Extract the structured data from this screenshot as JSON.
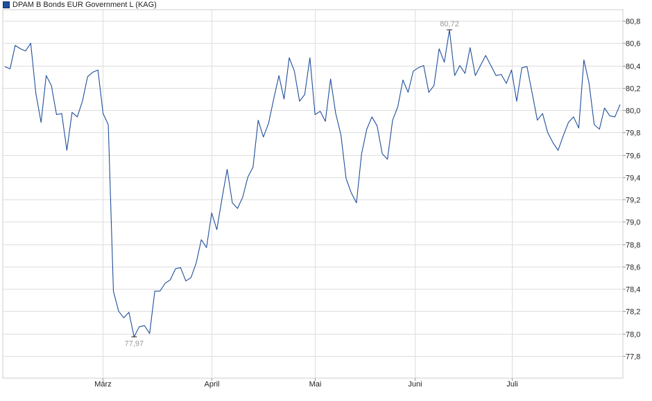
{
  "chart_data": {
    "type": "line",
    "title": "DPAM B Bonds EUR Government L (KAG)",
    "x_labels": [
      "März",
      "April",
      "Mai",
      "Juni",
      "Juli"
    ],
    "y_ticks": [
      "80,8",
      "80,6",
      "80,4",
      "80,2",
      "80,0",
      "79,8",
      "79,6",
      "79,4",
      "79,2",
      "79,0",
      "78,8",
      "78,6",
      "78,4",
      "78,2",
      "78,0",
      "77,8"
    ],
    "ylim": [
      77.6,
      80.9
    ],
    "grid": true,
    "series": [
      {
        "color": "#1f4e9b",
        "values": [
          80.39,
          80.37,
          80.58,
          80.55,
          80.53,
          80.6,
          80.15,
          79.89,
          80.31,
          80.22,
          79.96,
          79.97,
          79.64,
          79.98,
          79.94,
          80.08,
          80.3,
          80.34,
          80.36,
          79.97,
          79.87,
          78.38,
          78.2,
          78.14,
          78.19,
          77.97,
          78.06,
          78.07,
          78.0,
          78.38,
          78.38,
          78.45,
          78.48,
          78.58,
          78.59,
          78.47,
          78.5,
          78.63,
          78.84,
          78.77,
          79.08,
          78.93,
          79.21,
          79.47,
          79.17,
          79.12,
          79.22,
          79.4,
          79.49,
          79.91,
          79.76,
          79.88,
          80.1,
          80.31,
          80.1,
          80.47,
          80.35,
          80.08,
          80.14,
          80.47,
          79.96,
          79.99,
          79.9,
          80.28,
          79.97,
          79.78,
          79.39,
          79.26,
          79.17,
          79.61,
          79.83,
          79.94,
          79.86,
          79.61,
          79.56,
          79.91,
          80.03,
          80.27,
          80.16,
          80.35,
          80.38,
          80.4,
          80.16,
          80.22,
          80.55,
          80.43,
          80.72,
          80.31,
          80.4,
          80.33,
          80.56,
          80.31,
          80.4,
          80.49,
          80.4,
          80.31,
          80.32,
          80.24,
          80.36,
          80.08,
          80.38,
          80.39,
          80.15,
          79.91,
          79.97,
          79.8,
          79.71,
          79.64,
          79.77,
          79.89,
          79.94,
          79.84,
          80.45,
          80.24,
          79.87,
          79.83,
          80.02,
          79.95,
          79.94,
          80.05
        ]
      }
    ],
    "annotations": [
      {
        "label": "80,72",
        "index": 86,
        "value": 80.72
      },
      {
        "label": "77,97",
        "index": 25,
        "value": 77.97
      }
    ]
  }
}
